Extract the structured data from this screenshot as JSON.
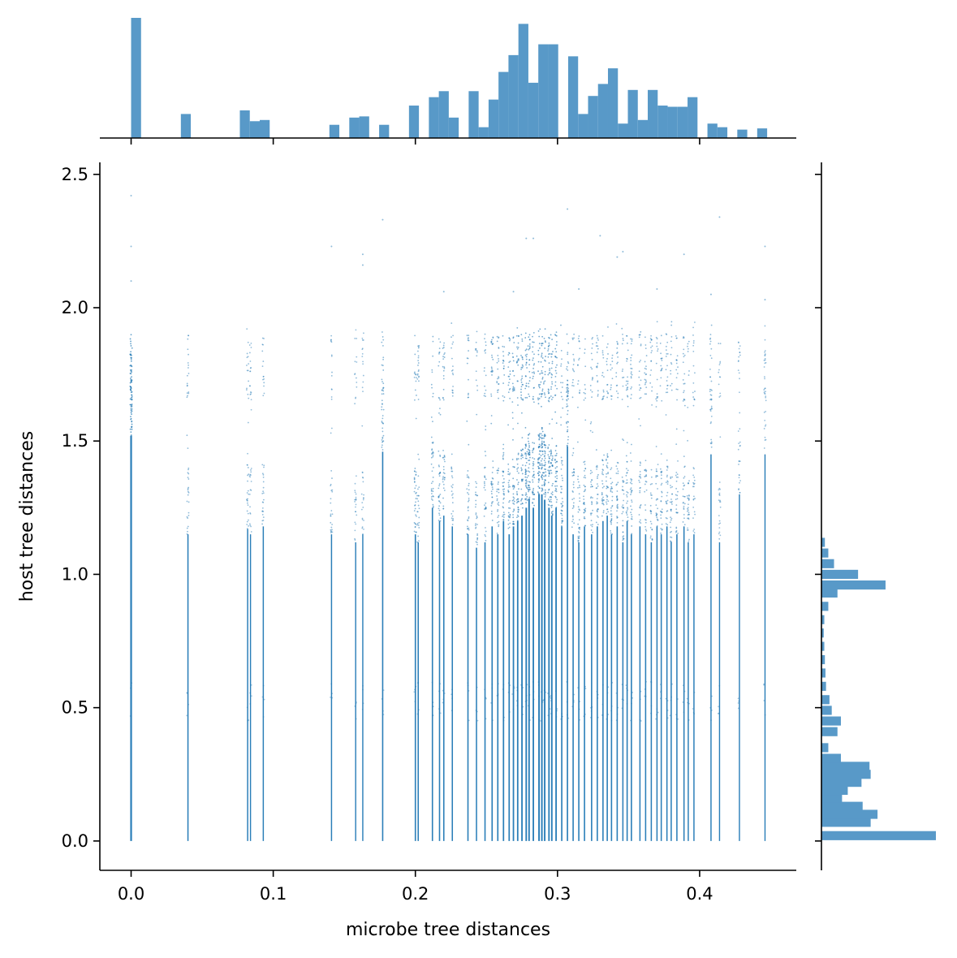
{
  "chart_data": {
    "type": "scatter",
    "title": "",
    "xlabel": "microbe tree distances",
    "ylabel": "host tree distances",
    "xlim": [
      -0.022,
      0.468
    ],
    "ylim": [
      -0.11,
      2.545
    ],
    "xticks": [
      0.0,
      0.1,
      0.2,
      0.3,
      0.4
    ],
    "xtick_labels": [
      "0.0",
      "0.1",
      "0.2",
      "0.3",
      "0.4"
    ],
    "yticks": [
      0.0,
      0.5,
      1.0,
      1.5,
      2.0,
      2.5
    ],
    "ytick_labels": [
      "0.0",
      "0.5",
      "1.0",
      "1.5",
      "2.0",
      "2.5"
    ],
    "grid": false,
    "colors": {
      "points": "#1f77b4",
      "hist": "#5899c8",
      "axis": "#000000"
    },
    "columns": [
      {
        "x": 0.0,
        "top": 1.52,
        "dens": 1.0
      },
      {
        "x": 0.04,
        "top": 1.15,
        "dens": 0.45
      },
      {
        "x": 0.082,
        "top": 1.17,
        "dens": 0.4
      },
      {
        "x": 0.084,
        "top": 1.15,
        "dens": 0.35
      },
      {
        "x": 0.093,
        "top": 1.18,
        "dens": 0.4
      },
      {
        "x": 0.141,
        "top": 1.15,
        "dens": 0.4
      },
      {
        "x": 0.158,
        "top": 1.12,
        "dens": 0.35
      },
      {
        "x": 0.163,
        "top": 1.15,
        "dens": 0.35
      },
      {
        "x": 0.177,
        "top": 1.46,
        "dens": 0.5
      },
      {
        "x": 0.2,
        "top": 1.15,
        "dens": 0.5
      },
      {
        "x": 0.202,
        "top": 1.12,
        "dens": 0.45
      },
      {
        "x": 0.212,
        "top": 1.25,
        "dens": 0.5
      },
      {
        "x": 0.217,
        "top": 1.2,
        "dens": 0.5
      },
      {
        "x": 0.22,
        "top": 1.22,
        "dens": 0.5
      },
      {
        "x": 0.226,
        "top": 1.18,
        "dens": 0.45
      },
      {
        "x": 0.237,
        "top": 1.15,
        "dens": 0.5
      },
      {
        "x": 0.243,
        "top": 1.1,
        "dens": 0.45
      },
      {
        "x": 0.249,
        "top": 1.12,
        "dens": 0.5
      },
      {
        "x": 0.254,
        "top": 1.18,
        "dens": 0.55
      },
      {
        "x": 0.258,
        "top": 1.15,
        "dens": 0.55
      },
      {
        "x": 0.262,
        "top": 1.2,
        "dens": 0.6
      },
      {
        "x": 0.266,
        "top": 1.15,
        "dens": 0.6
      },
      {
        "x": 0.269,
        "top": 1.18,
        "dens": 0.65
      },
      {
        "x": 0.272,
        "top": 1.2,
        "dens": 0.65
      },
      {
        "x": 0.275,
        "top": 1.22,
        "dens": 0.7
      },
      {
        "x": 0.278,
        "top": 1.25,
        "dens": 0.75
      },
      {
        "x": 0.28,
        "top": 1.28,
        "dens": 0.75
      },
      {
        "x": 0.283,
        "top": 1.25,
        "dens": 0.7
      },
      {
        "x": 0.287,
        "top": 1.3,
        "dens": 0.8
      },
      {
        "x": 0.289,
        "top": 1.3,
        "dens": 0.8
      },
      {
        "x": 0.291,
        "top": 1.28,
        "dens": 0.75
      },
      {
        "x": 0.294,
        "top": 1.25,
        "dens": 0.7
      },
      {
        "x": 0.296,
        "top": 1.22,
        "dens": 0.7
      },
      {
        "x": 0.299,
        "top": 1.25,
        "dens": 0.7
      },
      {
        "x": 0.303,
        "top": 1.18,
        "dens": 0.55
      },
      {
        "x": 0.307,
        "top": 1.48,
        "dens": 0.55
      },
      {
        "x": 0.311,
        "top": 1.15,
        "dens": 0.5
      },
      {
        "x": 0.315,
        "top": 1.12,
        "dens": 0.5
      },
      {
        "x": 0.319,
        "top": 1.18,
        "dens": 0.5
      },
      {
        "x": 0.324,
        "top": 1.15,
        "dens": 0.5
      },
      {
        "x": 0.328,
        "top": 1.18,
        "dens": 0.5
      },
      {
        "x": 0.332,
        "top": 1.2,
        "dens": 0.5
      },
      {
        "x": 0.335,
        "top": 1.22,
        "dens": 0.5
      },
      {
        "x": 0.338,
        "top": 1.15,
        "dens": 0.5
      },
      {
        "x": 0.342,
        "top": 1.18,
        "dens": 0.5
      },
      {
        "x": 0.346,
        "top": 1.12,
        "dens": 0.45
      },
      {
        "x": 0.349,
        "top": 1.2,
        "dens": 0.5
      },
      {
        "x": 0.352,
        "top": 1.15,
        "dens": 0.5
      },
      {
        "x": 0.358,
        "top": 1.18,
        "dens": 0.45
      },
      {
        "x": 0.362,
        "top": 1.15,
        "dens": 0.45
      },
      {
        "x": 0.366,
        "top": 1.12,
        "dens": 0.45
      },
      {
        "x": 0.37,
        "top": 1.18,
        "dens": 0.45
      },
      {
        "x": 0.373,
        "top": 1.15,
        "dens": 0.45
      },
      {
        "x": 0.377,
        "top": 1.18,
        "dens": 0.45
      },
      {
        "x": 0.38,
        "top": 1.12,
        "dens": 0.45
      },
      {
        "x": 0.384,
        "top": 1.15,
        "dens": 0.45
      },
      {
        "x": 0.389,
        "top": 1.18,
        "dens": 0.45
      },
      {
        "x": 0.392,
        "top": 1.12,
        "dens": 0.4
      },
      {
        "x": 0.396,
        "top": 1.15,
        "dens": 0.4
      },
      {
        "x": 0.408,
        "top": 1.45,
        "dens": 0.4
      },
      {
        "x": 0.414,
        "top": 1.12,
        "dens": 0.35
      },
      {
        "x": 0.428,
        "top": 1.3,
        "dens": 0.35
      },
      {
        "x": 0.446,
        "top": 1.45,
        "dens": 0.35
      }
    ],
    "outliers": [
      {
        "x": 0.0,
        "y": 2.42
      },
      {
        "x": 0.0,
        "y": 2.23
      },
      {
        "x": 0.0,
        "y": 2.1
      },
      {
        "x": 0.141,
        "y": 2.23
      },
      {
        "x": 0.163,
        "y": 2.16
      },
      {
        "x": 0.163,
        "y": 2.2
      },
      {
        "x": 0.177,
        "y": 2.33
      },
      {
        "x": 0.22,
        "y": 2.06
      },
      {
        "x": 0.269,
        "y": 2.06
      },
      {
        "x": 0.278,
        "y": 2.26
      },
      {
        "x": 0.283,
        "y": 2.26
      },
      {
        "x": 0.307,
        "y": 2.37
      },
      {
        "x": 0.315,
        "y": 2.07
      },
      {
        "x": 0.33,
        "y": 2.27
      },
      {
        "x": 0.342,
        "y": 2.19
      },
      {
        "x": 0.346,
        "y": 2.21
      },
      {
        "x": 0.37,
        "y": 2.07
      },
      {
        "x": 0.389,
        "y": 2.2
      },
      {
        "x": 0.408,
        "y": 2.05
      },
      {
        "x": 0.414,
        "y": 2.34
      },
      {
        "x": 0.446,
        "y": 2.23
      },
      {
        "x": 0.446,
        "y": 2.03
      }
    ],
    "marginal_x": {
      "bin_centers": [
        0.0035,
        0.0385,
        0.08,
        0.087,
        0.094,
        0.143,
        0.157,
        0.164,
        0.178,
        0.199,
        0.213,
        0.22,
        0.227,
        0.241,
        0.248,
        0.255,
        0.262,
        0.269,
        0.276,
        0.283,
        0.29,
        0.297,
        0.311,
        0.318,
        0.325,
        0.332,
        0.339,
        0.346,
        0.353,
        0.36,
        0.367,
        0.374,
        0.381,
        0.388,
        0.395,
        0.409,
        0.416,
        0.43,
        0.444
      ],
      "counts": [
        1.0,
        0.2,
        0.23,
        0.14,
        0.15,
        0.11,
        0.17,
        0.18,
        0.11,
        0.27,
        0.34,
        0.39,
        0.17,
        0.39,
        0.09,
        0.32,
        0.55,
        0.69,
        0.95,
        0.46,
        0.78,
        0.78,
        0.68,
        0.2,
        0.35,
        0.45,
        0.58,
        0.12,
        0.4,
        0.15,
        0.4,
        0.27,
        0.26,
        0.26,
        0.34,
        0.12,
        0.09,
        0.07,
        0.08
      ],
      "bin_width": 0.007
    },
    "marginal_y": {
      "bin_centers": [
        0.02,
        0.07,
        0.1,
        0.13,
        0.16,
        0.19,
        0.22,
        0.25,
        0.28,
        0.31,
        0.35,
        0.41,
        0.45,
        0.49,
        0.53,
        0.58,
        0.63,
        0.68,
        0.73,
        0.78,
        0.83,
        0.88,
        0.93,
        0.96,
        1.0,
        1.04,
        1.08,
        1.12
      ],
      "counts": [
        1.0,
        0.43,
        0.49,
        0.36,
        0.18,
        0.23,
        0.35,
        0.43,
        0.42,
        0.17,
        0.06,
        0.14,
        0.17,
        0.09,
        0.07,
        0.04,
        0.035,
        0.03,
        0.025,
        0.02,
        0.025,
        0.06,
        0.14,
        0.56,
        0.32,
        0.11,
        0.06,
        0.03
      ],
      "bin_height": 0.034
    }
  }
}
